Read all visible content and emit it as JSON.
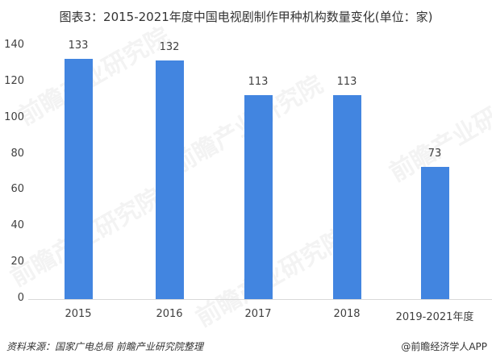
{
  "title": "图表3：2015-2021年度中国电视剧制作甲种机构数量变化(单位：家)",
  "source": "资料来源：国家广电总局 前瞻产业研究院整理",
  "credit": "@前瞻经济学人APP",
  "watermark": "前瞻产业研究院",
  "bar_color": "#4285e0",
  "chart_data": {
    "type": "bar",
    "title": "图表3：2015-2021年度中国电视剧制作甲种机构数量变化(单位：家)",
    "categories": [
      "2015",
      "2016",
      "2017",
      "2018",
      "2019-2021年度"
    ],
    "values": [
      133,
      132,
      113,
      113,
      73
    ],
    "xlabel": "",
    "ylabel": "",
    "ylim": [
      0,
      140
    ],
    "yticks": [
      0,
      20,
      40,
      60,
      80,
      100,
      120,
      140
    ],
    "grid": false,
    "legend": "none",
    "data_labels": [
      "133",
      "132",
      "113",
      "113",
      "73"
    ]
  }
}
